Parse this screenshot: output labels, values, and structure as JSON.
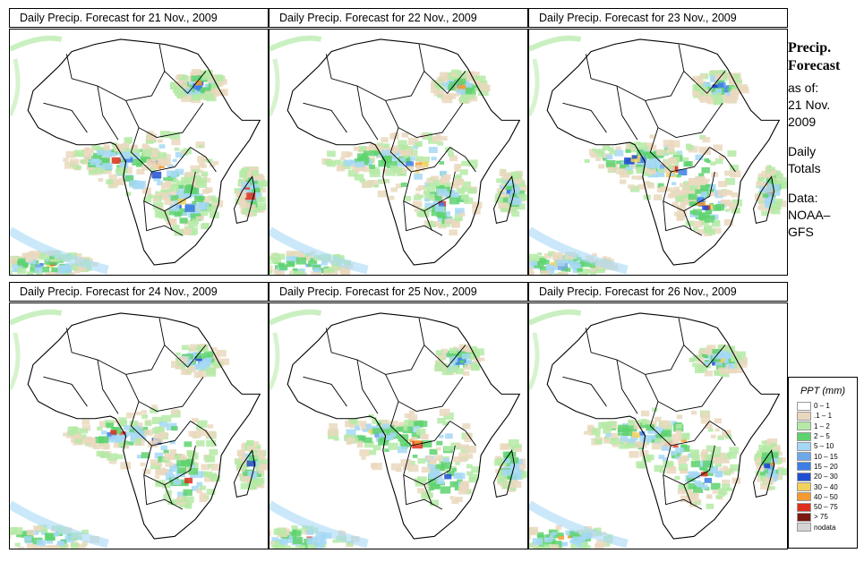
{
  "panels": [
    {
      "title": "Daily Precip. Forecast for  21 Nov., 2009",
      "intensity": 1.0
    },
    {
      "title": "Daily Precip. Forecast for  22 Nov., 2009",
      "intensity": 0.8
    },
    {
      "title": "Daily Precip. Forecast for  23 Nov., 2009",
      "intensity": 0.85
    },
    {
      "title": "Daily Precip. Forecast for  24 Nov., 2009",
      "intensity": 0.7
    },
    {
      "title": "Daily Precip. Forecast for  25 Nov., 2009",
      "intensity": 0.6
    },
    {
      "title": "Daily Precip. Forecast for  26 Nov., 2009",
      "intensity": 0.75
    }
  ],
  "sidebar": {
    "heading_1": "Precip.",
    "heading_2": "Forecast",
    "asof_1": "as of:",
    "asof_2": "21 Nov.",
    "asof_3": "2009",
    "totals_1": "Daily",
    "totals_2": "Totals",
    "source_1": "Data:",
    "source_2": "NOAA–",
    "source_3": "GFS"
  },
  "legend": {
    "title": "PPT (mm)",
    "items": [
      {
        "label": "0 – 1",
        "color": "#ffffff"
      },
      {
        "label": ".1 – 1",
        "color": "#ead8be"
      },
      {
        "label": "1 – 2",
        "color": "#b4eaa6"
      },
      {
        "label": "2 – 5",
        "color": "#5ed26e"
      },
      {
        "label": "5 – 10",
        "color": "#a6d8f5"
      },
      {
        "label": "10 – 15",
        "color": "#6fa8ea"
      },
      {
        "label": "15 – 20",
        "color": "#3c7ee6"
      },
      {
        "label": "20 – 30",
        "color": "#1f4fd0"
      },
      {
        "label": "30 – 40",
        "color": "#f2d25a"
      },
      {
        "label": "40 – 50",
        "color": "#f59a2e"
      },
      {
        "label": "50 – 75",
        "color": "#dd2f1b"
      },
      {
        "label": "> 75",
        "color": "#7a1a12"
      },
      {
        "label": "nodata",
        "color": "#d4d4d4"
      }
    ]
  }
}
